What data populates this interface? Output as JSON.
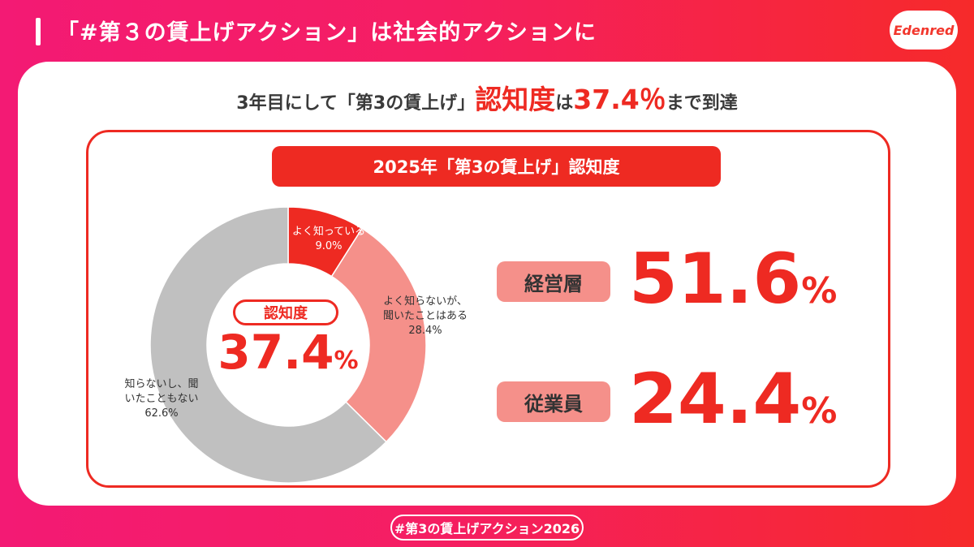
{
  "header": {
    "title": "「#第３の賃上げアクション」は社会的アクションに",
    "logo_text": "Edenred"
  },
  "headline": {
    "prefix": "3年目にして「第3の賃上げ」",
    "emphasis": "認知度",
    "middle": "は",
    "value": "37.4％",
    "suffix": "まで到達"
  },
  "colors": {
    "accent": "#ee2a22",
    "pink": "#f5908a",
    "gray": "#c0c0c0"
  },
  "chart_data": {
    "type": "pie",
    "title": "2025年「第3の賃上げ」認知度",
    "series": [
      {
        "label_lines": [
          "よく知っている",
          "9.0%"
        ],
        "value": 9.0,
        "color": "#ee2a22"
      },
      {
        "label_lines": [
          "よく知らないが、",
          "聞いたことはある",
          "28.4%"
        ],
        "value": 28.4,
        "color": "#f5908a"
      },
      {
        "label_lines": [
          "知らないし、聞",
          "いたこともない",
          "62.6%"
        ],
        "value": 62.6,
        "color": "#c0c0c0"
      }
    ],
    "center_label": "認知度",
    "center_value": "37.4",
    "center_unit": "%"
  },
  "stats": [
    {
      "label": "経営層",
      "value": "51.6",
      "unit": "%"
    },
    {
      "label": "従業員",
      "value": "24.4",
      "unit": "%"
    }
  ],
  "footer": {
    "tag": "#第3の賃上げアクション2026"
  }
}
